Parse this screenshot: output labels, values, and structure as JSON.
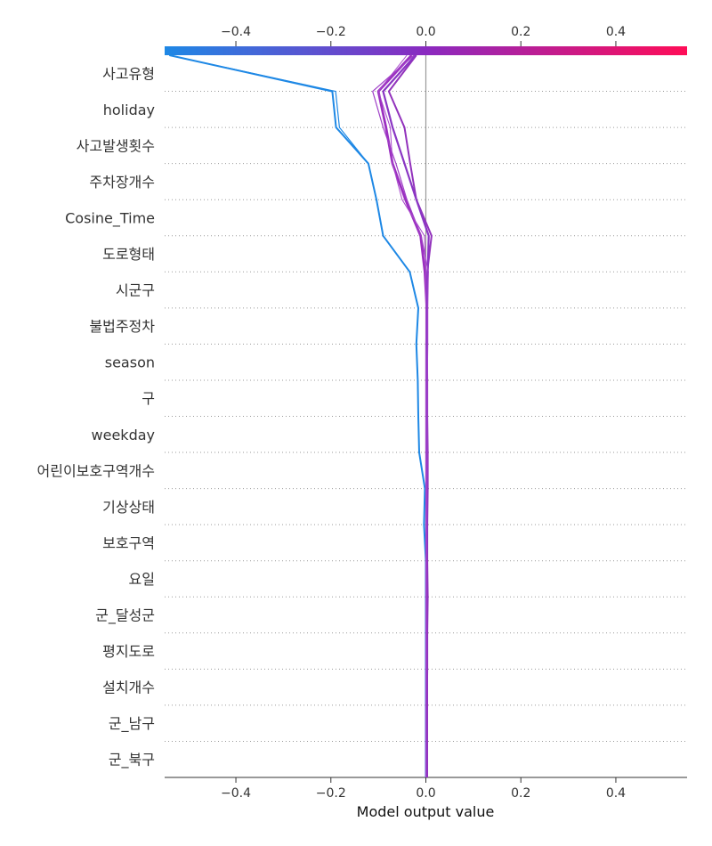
{
  "chart_data": {
    "type": "line",
    "subtype": "shap-decision-plot",
    "xlabel": "Model output value",
    "xlim": [
      -0.55,
      0.55
    ],
    "x_ticks": [
      -0.4,
      -0.2,
      0.0,
      0.2,
      0.4
    ],
    "x_tick_labels": [
      "−0.4",
      "−0.2",
      "0.0",
      "0.2",
      "0.4"
    ],
    "base_value": 0.0,
    "features": [
      "사고유형",
      "holiday",
      "사고발생횟수",
      "주차장개수",
      "Cosine_Time",
      "도로형태",
      "시군구",
      "불법주정차",
      "season",
      "구",
      "weekday",
      "어린이보호구역개수",
      "기상상태",
      "보호구역",
      "요일",
      "군_달성군",
      "평지도로",
      "설치개수",
      "군_남구",
      "군_북구"
    ],
    "grid": "dotted horizontal separators",
    "colorbar": {
      "low": "#1e88e5",
      "mid": "#8a2ac0",
      "high": "#ff0d57"
    },
    "series": [
      {
        "color": "#1e88e5",
        "width": 2.0,
        "values": [
          0.0,
          0.0,
          0.0,
          0.0,
          0.0,
          0.0,
          0.0,
          -0.004,
          -0.002,
          -0.014,
          -0.016,
          -0.017,
          -0.02,
          -0.016,
          -0.034,
          -0.09,
          -0.104,
          -0.121,
          -0.189,
          -0.197,
          -0.54
        ]
      },
      {
        "color": "#1e88e5",
        "width": 1.2,
        "values": [
          0.001,
          0.001,
          0.001,
          0.001,
          0.001,
          0.0,
          0.0,
          -0.004,
          -0.002,
          -0.014,
          -0.016,
          -0.017,
          -0.02,
          -0.016,
          -0.034,
          -0.09,
          -0.104,
          -0.121,
          -0.182,
          -0.19,
          -0.54
        ]
      },
      {
        "color": "#9b30c0",
        "width": 2.8,
        "values": [
          0.002,
          0.002,
          0.002,
          0.002,
          0.002,
          0.002,
          0.002,
          0.002,
          0.002,
          0.002,
          0.002,
          0.002,
          0.002,
          0.002,
          -0.002,
          -0.011,
          -0.043,
          -0.07,
          -0.084,
          -0.1,
          -0.03
        ]
      },
      {
        "color": "#9232bc",
        "width": 2.0,
        "values": [
          0.002,
          0.002,
          0.002,
          0.003,
          0.003,
          0.004,
          0.003,
          0.003,
          0.004,
          0.004,
          0.003,
          0.003,
          0.002,
          0.002,
          0.003,
          0.012,
          -0.02,
          -0.033,
          -0.045,
          -0.078,
          -0.02
        ]
      },
      {
        "color": "#8a36c4",
        "width": 2.2,
        "values": [
          0.001,
          0.001,
          0.001,
          0.001,
          0.001,
          0.001,
          0.001,
          0.001,
          0.001,
          0.001,
          0.001,
          0.001,
          0.001,
          0.002,
          0.004,
          0.006,
          -0.02,
          -0.045,
          -0.07,
          -0.09,
          -0.022
        ]
      },
      {
        "color": "#a040c8",
        "width": 1.2,
        "values": [
          0.0,
          0.0,
          0.0,
          0.001,
          0.001,
          0.001,
          0.001,
          0.002,
          0.002,
          0.003,
          0.003,
          0.003,
          0.004,
          0.004,
          0.005,
          -0.01,
          -0.04,
          -0.063,
          -0.09,
          -0.112,
          -0.025
        ]
      },
      {
        "color": "#a847cc",
        "width": 1.0,
        "values": [
          0.0,
          0.0,
          0.0,
          0.0,
          0.0,
          0.0,
          0.0,
          0.0,
          0.0,
          0.0,
          0.0,
          0.0,
          0.0,
          0.0,
          0.0,
          -0.003,
          -0.05,
          -0.07,
          -0.075,
          -0.1,
          -0.04
        ]
      }
    ]
  }
}
